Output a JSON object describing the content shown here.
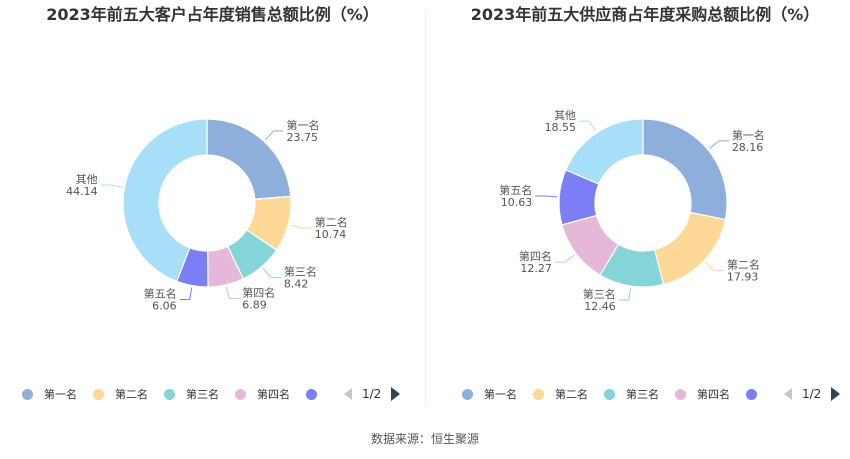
{
  "source": "数据来源：恒生聚源",
  "chart_data": [
    {
      "type": "pie",
      "title": "2023年前五大客户占年度销售总额比例（%）",
      "categories": [
        "第一名",
        "第二名",
        "第三名",
        "第四名",
        "第五名",
        "其他"
      ],
      "values": [
        23.75,
        10.74,
        8.42,
        6.89,
        6.06,
        44.14
      ],
      "colors": [
        "#8eaedc",
        "#fdd896",
        "#85d5d8",
        "#e5b8da",
        "#7b7ef5",
        "#a6dff7"
      ],
      "legend": {
        "position": "bottom",
        "page_label": "1/2"
      }
    },
    {
      "type": "pie",
      "title": "2023年前五大供应商占年度采购总额比例（%）",
      "categories": [
        "第一名",
        "第二名",
        "第三名",
        "第四名",
        "第五名",
        "其他"
      ],
      "values": [
        28.16,
        17.93,
        12.46,
        12.27,
        10.63,
        18.55
      ],
      "colors": [
        "#8eaedc",
        "#fdd896",
        "#85d5d8",
        "#e5b8da",
        "#7b7ef5",
        "#a6dff7"
      ],
      "legend": {
        "position": "bottom",
        "page_label": "1/2"
      }
    }
  ]
}
